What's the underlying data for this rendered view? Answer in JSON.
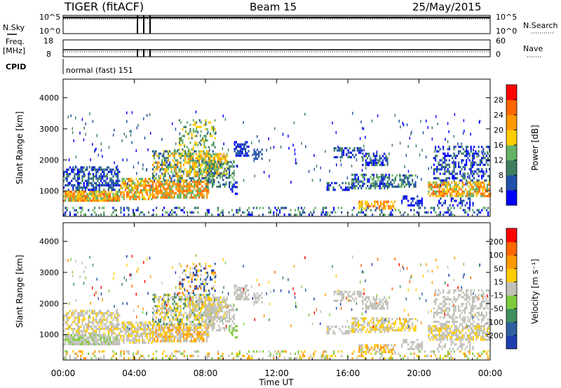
{
  "header": {
    "radar": "TIGER (fitACF)",
    "beam": "Beam 15",
    "date": "25/May/2015"
  },
  "panel_labels": {
    "nsky": "N.Sky",
    "nsearch": "N.Search",
    "freq_line1": "Freq.",
    "freq_line2": "[MHz]",
    "nave": "Nave",
    "cpid": "CPID",
    "cpid_text": "normal (fast) 151"
  },
  "colors": {
    "power_scale": [
      "#0000ff",
      "#1f4fa8",
      "#3f7f5f",
      "#66b366",
      "#ffcc00",
      "#ff9900",
      "#ff6600",
      "#ff0000"
    ],
    "velocity_scale": [
      "#1f3fb0",
      "#2e5fa0",
      "#3f8f5f",
      "#7fcc3f",
      "#c0c0b8",
      "#ffcc00",
      "#ff9900",
      "#ff6600",
      "#ff0000"
    ],
    "gray_scatter": "#c0c0b8"
  },
  "chart_data": [
    {
      "type": "line",
      "name": "status-nsky-nsearch",
      "ylabel_left": "N.Sky",
      "ylabel_right": "N.Search",
      "left_ticks": [
        "10^5",
        "10^0"
      ],
      "right_ticks": [
        "10^5",
        "10^0"
      ]
    },
    {
      "type": "line",
      "name": "status-freq-nave",
      "ylabel_left": "Freq. [MHz]",
      "ylabel_right": "Nave",
      "left_ticks": [
        "18",
        "8"
      ],
      "right_ticks": [
        "60",
        "0"
      ]
    },
    {
      "type": "heatmap",
      "name": "power",
      "ylabel": "Slant Range [km]",
      "ylim": [
        180,
        4600
      ],
      "yticks": [
        1000,
        2000,
        3000,
        4000
      ],
      "colorbar_label": "Power [dB]",
      "colorbar_ticks": [
        "4",
        "8",
        "12",
        "16",
        "20",
        "24",
        "28"
      ],
      "xlim": [
        0,
        24
      ],
      "xticks": [
        "00:00",
        "04:00",
        "08:00",
        "12:00",
        "16:00",
        "20:00",
        "00:00"
      ]
    },
    {
      "type": "heatmap",
      "name": "velocity",
      "ylabel": "Slant Range [km]",
      "ylim": [
        180,
        4600
      ],
      "yticks": [
        1000,
        2000,
        3000,
        4000
      ],
      "colorbar_label": "Velocity [m s⁻¹]",
      "colorbar_ticks": [
        "-200",
        "-100",
        "-50",
        "-15",
        "15",
        "50",
        "100",
        "200"
      ],
      "xlabel": "Time UT",
      "xlim": [
        0,
        24
      ],
      "xticks": [
        "00:00",
        "04:00",
        "08:00",
        "12:00",
        "16:00",
        "20:00",
        "00:00"
      ]
    }
  ]
}
